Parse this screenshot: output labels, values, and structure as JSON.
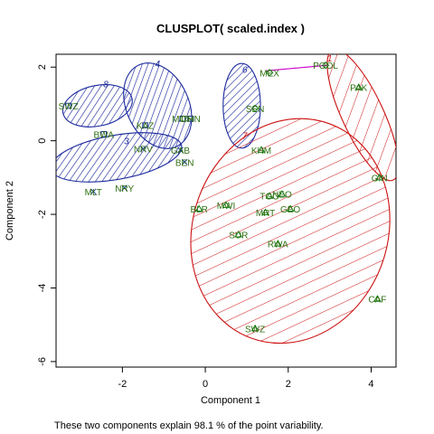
{
  "chart_data": {
    "type": "scatter",
    "title": "CLUSPLOT( scaled.index )",
    "xlabel": "Component 1",
    "ylabel": "Component 2",
    "subtitle": "These two components explain 98.1 % of the point variability.",
    "xlim": [
      -3.6,
      4.6
    ],
    "ylim": [
      -6.15,
      2.35
    ],
    "xticks": [
      -2,
      0,
      2,
      4
    ],
    "yticks": [
      -6,
      -4,
      -2,
      0,
      2
    ],
    "colors": {
      "blue": "#1c2a9e",
      "red": "#cc1111",
      "magenta": "#cc00cc",
      "green": "#0a7a0a",
      "label": "#2e6f10",
      "point_blue": "#1a3a8a"
    },
    "clusters": [
      {
        "label": "8",
        "color": "blue",
        "cx": -2.6,
        "cy": 0.95,
        "rx": 0.85,
        "ry": 0.55,
        "angle": 12,
        "label_x": -2.4,
        "label_y": 1.45
      },
      {
        "label": "4",
        "color": "blue",
        "cx": -1.15,
        "cy": 0.95,
        "rx": 0.75,
        "ry": 1.22,
        "angle": 25,
        "label_x": -1.15,
        "label_y": 2.0
      },
      {
        "label": "3",
        "color": "blue",
        "cx": -2.15,
        "cy": -0.45,
        "rx": 1.6,
        "ry": 0.6,
        "angle": 10,
        "label_x": -1.9,
        "label_y": -0.1
      },
      {
        "label": "6",
        "color": "blue",
        "cx": 0.88,
        "cy": 0.95,
        "rx": 0.45,
        "ry": 1.15,
        "angle": 0,
        "label_x": 0.95,
        "label_y": 1.85
      },
      {
        "label": "7",
        "color": "red",
        "cx": 2.05,
        "cy": -2.45,
        "rx": 2.35,
        "ry": 3.1,
        "angle": -20,
        "label_x": 0.95,
        "label_y": 0.05
      },
      {
        "label": "1",
        "color": "red",
        "cx": 3.8,
        "cy": 0.7,
        "rx": 0.5,
        "ry": 1.95,
        "angle": 25,
        "label_x": 3.0,
        "label_y": 2.15
      }
    ],
    "connector": {
      "color": "magenta",
      "x1": 1.45,
      "y1": 1.9,
      "x2": 2.95,
      "y2": 2.05
    },
    "points": [
      {
        "label": "SWZ",
        "x": -3.3,
        "y": 0.95,
        "sym": "square"
      },
      {
        "label": "BWA",
        "x": -2.45,
        "y": 0.18,
        "sym": "square"
      },
      {
        "label": "KAZ",
        "x": -1.45,
        "y": 0.42,
        "sym": "square"
      },
      {
        "label": "MON",
        "x": -0.55,
        "y": 0.6,
        "sym": "square"
      },
      {
        "label": "CHN",
        "x": -0.35,
        "y": 0.6,
        "sym": "square"
      },
      {
        "label": "NRV",
        "x": -1.5,
        "y": -0.22,
        "sym": "x"
      },
      {
        "label": "GAB",
        "x": -0.6,
        "y": -0.25,
        "sym": "x"
      },
      {
        "label": "BEN",
        "x": -0.5,
        "y": -0.58,
        "sym": "x"
      },
      {
        "label": "MLT",
        "x": -2.7,
        "y": -1.38,
        "sym": "x"
      },
      {
        "label": "NRY",
        "x": -1.95,
        "y": -1.28,
        "sym": "x"
      },
      {
        "label": "MEX",
        "x": 1.55,
        "y": 1.85,
        "sym": "diamond"
      },
      {
        "label": "POOL",
        "x": 2.9,
        "y": 2.05,
        "sym": "diamond"
      },
      {
        "label": "SEN",
        "x": 1.2,
        "y": 0.88,
        "sym": "diamond"
      },
      {
        "label": "KHM",
        "x": 1.35,
        "y": -0.25,
        "sym": "tri"
      },
      {
        "label": "BLR",
        "x": -0.15,
        "y": -1.85,
        "sym": "tri"
      },
      {
        "label": "MWI",
        "x": 0.5,
        "y": -1.75,
        "sym": "tri"
      },
      {
        "label": "TGO",
        "x": 1.55,
        "y": -1.5,
        "sym": "tri"
      },
      {
        "label": "NEO",
        "x": 1.85,
        "y": -1.45,
        "sym": "tri"
      },
      {
        "label": "MRT",
        "x": 1.45,
        "y": -1.95,
        "sym": "tri"
      },
      {
        "label": "GEO",
        "x": 2.05,
        "y": -1.85,
        "sym": "tri"
      },
      {
        "label": "SUR",
        "x": 0.8,
        "y": -2.55,
        "sym": "tri"
      },
      {
        "label": "RWA",
        "x": 1.75,
        "y": -2.8,
        "sym": "tri"
      },
      {
        "label": "SWZ",
        "x": 1.2,
        "y": -5.1,
        "sym": "tri"
      },
      {
        "label": "CAF",
        "x": 4.15,
        "y": -4.3,
        "sym": "tri"
      },
      {
        "label": "PAK",
        "x": 3.7,
        "y": 1.45,
        "sym": "tri"
      },
      {
        "label": "GIN",
        "x": 4.2,
        "y": -1.0,
        "sym": "tri"
      }
    ]
  }
}
